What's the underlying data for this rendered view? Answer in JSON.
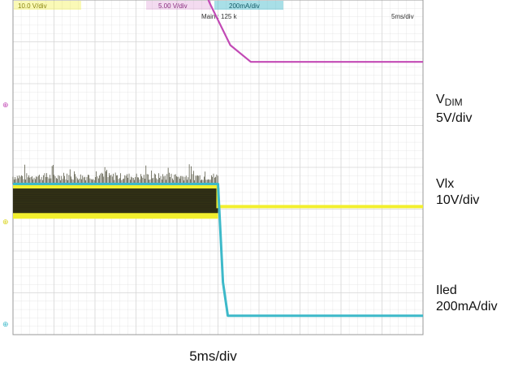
{
  "colors": {
    "background": "#ffffff",
    "grid": "#d6d6d6",
    "border": "#9a9a9a",
    "ch_magenta": "#c24ab5",
    "ch_yellow": "#f2ef2e",
    "ch_yellow_fill": "#2b2a14",
    "ch_cyan": "#3db9c9"
  },
  "header": {
    "ch1_setting": "10.0 V/div",
    "ch2_setting": "5.00 V/div",
    "ch3_setting": "200mA/div",
    "main_info": "Main : 125 k",
    "timebase": "5ms/div"
  },
  "labels": {
    "vdim_main": "V",
    "vdim_sub": "DIM",
    "vdim_scale": "5V/div",
    "vlx_name": "Vlx",
    "vlx_scale": "10V/div",
    "iled_name": "Iled",
    "iled_scale": "200mA/div",
    "time_per_div": "5ms/div"
  },
  "chart_data": {
    "type": "line",
    "title": "",
    "xlabel": "5ms/div",
    "x_unit": "ms",
    "xlim": [
      0,
      50
    ],
    "grid": true,
    "series": [
      {
        "name": "VDIM",
        "scale": "5V/div",
        "x": [
          0,
          18.5,
          21,
          24,
          26.5,
          29,
          50
        ],
        "y": [
          4.8,
          4.8,
          4.0,
          2.6,
          1.6,
          1.2,
          1.2
        ],
        "color": "#c24ab5"
      },
      {
        "name": "Vlx",
        "scale": "10V/div",
        "switching_band": {
          "x": [
            0,
            25
          ],
          "low": -0.2,
          "high": 0.6,
          "spike_top": 1.0
        },
        "x": [
          25,
          25,
          50
        ],
        "y": [
          0.5,
          0.05,
          0.05
        ],
        "color": "#f2ef2e"
      },
      {
        "name": "Iled",
        "scale": "200mA/div",
        "x": [
          0,
          25,
          25.6,
          26.2,
          50
        ],
        "y": [
          3.35,
          3.35,
          1.0,
          0.2,
          0.2
        ],
        "color": "#3db9c9"
      }
    ]
  }
}
